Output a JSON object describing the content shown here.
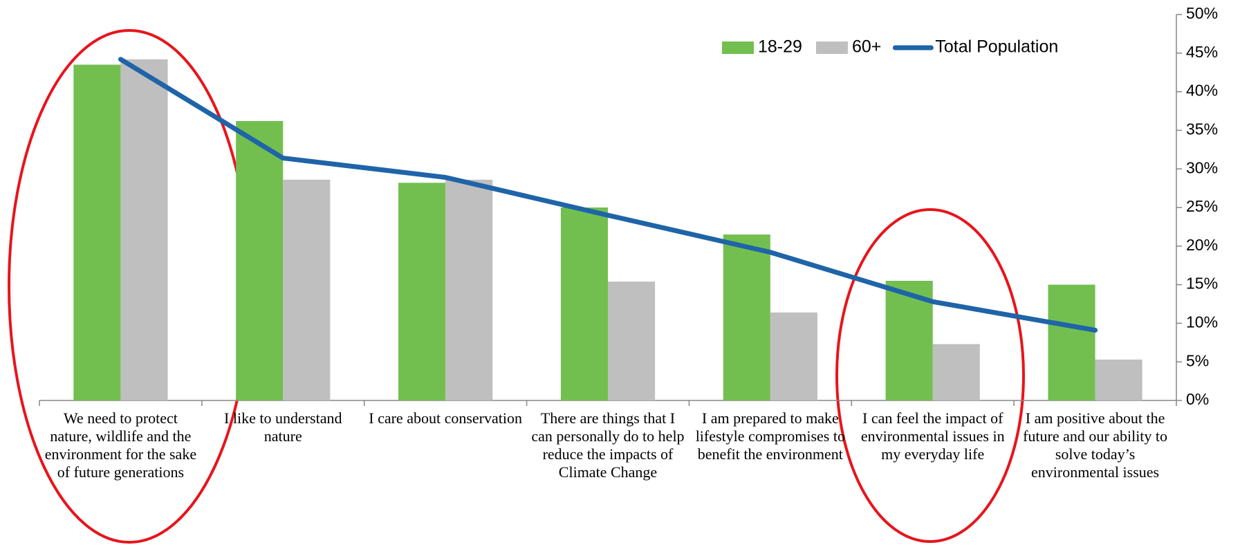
{
  "chart_data": {
    "type": "bar",
    "categories": [
      "We need to protect nature, wildlife and the environment for the sake of future generations",
      "I like to understand nature",
      "I care about conservation",
      "There are things that I can personally do to help reduce the impacts of Climate Change",
      "I am prepared to make lifestyle compromises to benefit the environment",
      "I can feel the impact of environmental issues in my everyday life",
      "I am positive about the future and our ability to solve today’s environmental issues"
    ],
    "series": [
      {
        "name": "18-29",
        "color": "#72bf50",
        "type": "bar",
        "values": [
          43.5,
          36.2,
          28.2,
          25,
          21.5,
          15.5,
          15
        ]
      },
      {
        "name": "60+",
        "color": "#bfbfbf",
        "type": "bar",
        "values": [
          44.2,
          28.6,
          28.6,
          15.4,
          11.4,
          7.3,
          5.3
        ]
      },
      {
        "name": "Total Population",
        "color": "#1f64a8",
        "type": "line",
        "values": [
          44.2,
          31.4,
          28.9,
          24,
          19.2,
          12.8,
          9.1
        ]
      }
    ],
    "ylim": [
      0,
      50
    ],
    "yticks": [
      {
        "value": 0,
        "label": "0%"
      },
      {
        "value": 5,
        "label": "5%"
      },
      {
        "value": 10,
        "label": "10%"
      },
      {
        "value": 15,
        "label": "15%"
      },
      {
        "value": 20,
        "label": "20%"
      },
      {
        "value": 25,
        "label": "25%"
      },
      {
        "value": 30,
        "label": "30%"
      },
      {
        "value": 35,
        "label": "35%"
      },
      {
        "value": 40,
        "label": "40%"
      },
      {
        "value": 45,
        "label": "45%"
      },
      {
        "value": 50,
        "label": "50%"
      }
    ],
    "y_axis_side": "right",
    "legend": "top-right",
    "grid": false
  }
}
